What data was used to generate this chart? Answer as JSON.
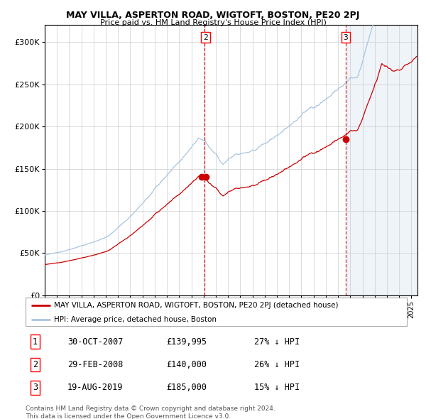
{
  "title": "MAY VILLA, ASPERTON ROAD, WIGTOFT, BOSTON, PE20 2PJ",
  "subtitle": "Price paid vs. HM Land Registry's House Price Index (HPI)",
  "ylim": [
    0,
    320000
  ],
  "xlim_start": 1995.0,
  "xlim_end": 2025.5,
  "yticks": [
    0,
    50000,
    100000,
    150000,
    200000,
    250000,
    300000
  ],
  "ytick_labels": [
    "£0",
    "£50K",
    "£100K",
    "£150K",
    "£200K",
    "£250K",
    "£300K"
  ],
  "sale_dates_num": [
    2007.831,
    2008.164,
    2019.631
  ],
  "sale_prices": [
    139995,
    140000,
    185000
  ],
  "sale_labels": [
    "1",
    "2",
    "3"
  ],
  "vline_dates": [
    2008.08,
    2019.63
  ],
  "transaction_table": [
    {
      "num": "1",
      "date": "30-OCT-2007",
      "price": "£139,995",
      "hpi": "27% ↓ HPI"
    },
    {
      "num": "2",
      "date": "29-FEB-2008",
      "price": "£140,000",
      "hpi": "26% ↓ HPI"
    },
    {
      "num": "3",
      "date": "19-AUG-2019",
      "price": "£185,000",
      "hpi": "15% ↓ HPI"
    }
  ],
  "legend_entries": [
    "MAY VILLA, ASPERTON ROAD, WIGTOFT, BOSTON, PE20 2PJ (detached house)",
    "HPI: Average price, detached house, Boston"
  ],
  "hpi_color": "#a8c4e0",
  "price_color": "#cc0000",
  "footnote": "Contains HM Land Registry data © Crown copyright and database right 2024.\nThis data is licensed under the Open Government Licence v3.0.",
  "future_shade_start": 2019.75,
  "background_color": "#ffffff"
}
